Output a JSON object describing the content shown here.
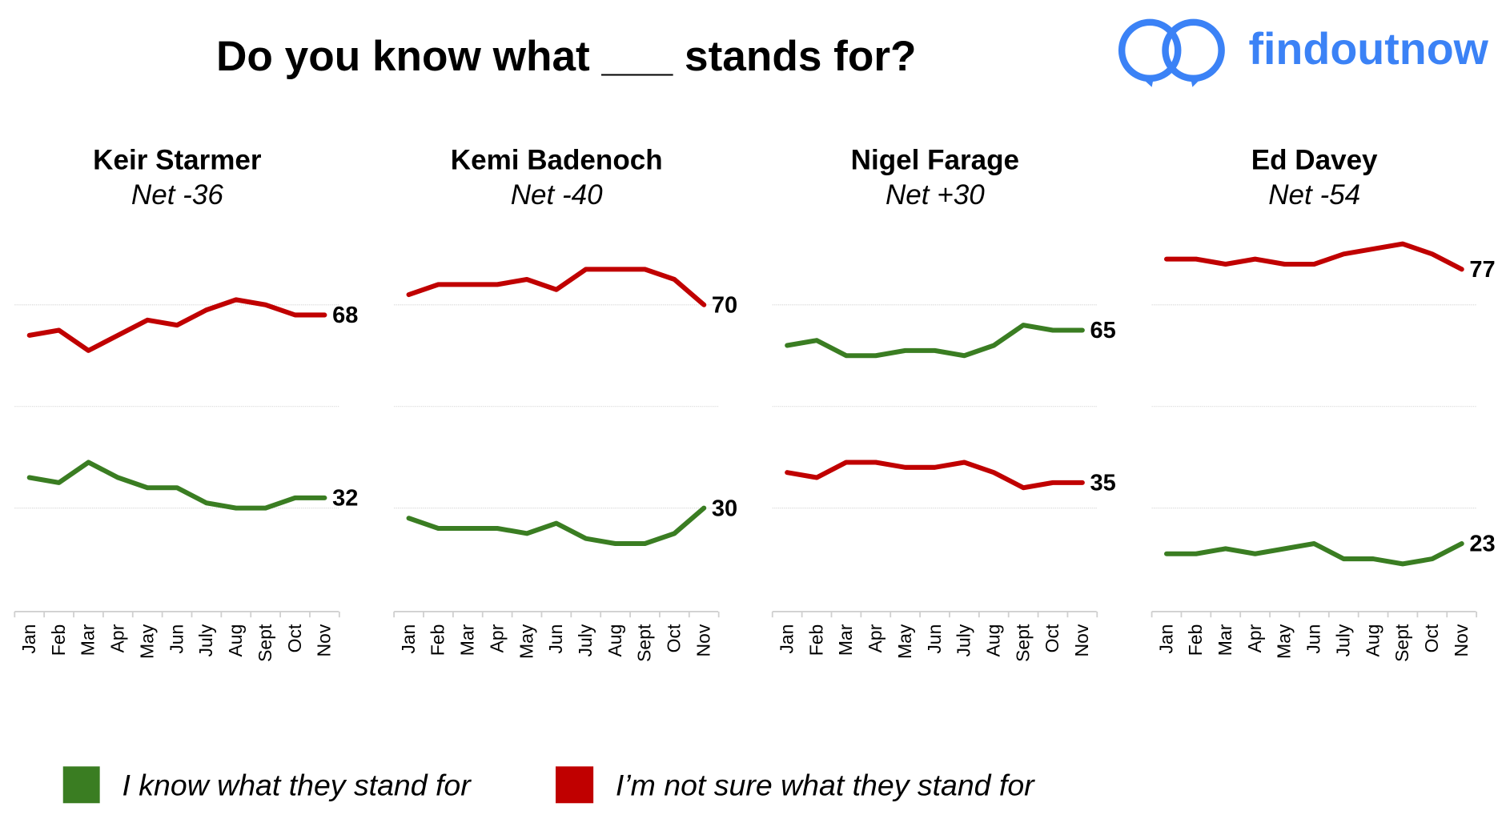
{
  "title": "Do you know what ___ stands for?",
  "brand": {
    "name": "findoutnow",
    "color": "#3b82f6"
  },
  "legend": [
    {
      "label": "I know what they stand for",
      "color": "#3a7d22"
    },
    {
      "label": "I’m not sure what they stand for",
      "color": "#c00000"
    }
  ],
  "chart_data": [
    {
      "type": "line",
      "title": "Keir Starmer",
      "subtitle": "Net -36",
      "categories": [
        "Jan",
        "Feb",
        "Mar",
        "Apr",
        "May",
        "Jun",
        "July",
        "Aug",
        "Sept",
        "Oct",
        "Nov"
      ],
      "ylim": [
        10,
        90
      ],
      "grid": true,
      "series": [
        {
          "name": "I know what they stand for",
          "color": "#3a7d22",
          "values": [
            36,
            35,
            39,
            36,
            34,
            34,
            31,
            30,
            30,
            32,
            32
          ],
          "end_label": "32"
        },
        {
          "name": "I’m not sure what they stand for",
          "color": "#c00000",
          "values": [
            64,
            65,
            61,
            64,
            67,
            66,
            69,
            71,
            70,
            68,
            68
          ],
          "end_label": "68"
        }
      ]
    },
    {
      "type": "line",
      "title": "Kemi Badenoch",
      "subtitle": "Net -40",
      "categories": [
        "Jan",
        "Feb",
        "Mar",
        "Apr",
        "May",
        "Jun",
        "July",
        "Aug",
        "Sept",
        "Oct",
        "Nov"
      ],
      "ylim": [
        10,
        90
      ],
      "grid": true,
      "series": [
        {
          "name": "I know what they stand for",
          "color": "#3a7d22",
          "values": [
            28,
            26,
            26,
            26,
            25,
            27,
            24,
            23,
            23,
            25,
            30
          ],
          "end_label": "30"
        },
        {
          "name": "I’m not sure what they stand for",
          "color": "#c00000",
          "values": [
            72,
            74,
            74,
            74,
            75,
            73,
            77,
            77,
            77,
            75,
            70
          ],
          "end_label": "70"
        }
      ]
    },
    {
      "type": "line",
      "title": "Nigel Farage",
      "subtitle": "Net +30",
      "categories": [
        "Jan",
        "Feb",
        "Mar",
        "Apr",
        "May",
        "Jun",
        "July",
        "Aug",
        "Sept",
        "Oct",
        "Nov"
      ],
      "ylim": [
        10,
        90
      ],
      "grid": true,
      "series": [
        {
          "name": "I know what they stand for",
          "color": "#3a7d22",
          "values": [
            62,
            63,
            60,
            60,
            61,
            61,
            60,
            62,
            66,
            65,
            65
          ],
          "end_label": "65"
        },
        {
          "name": "I’m not sure what they stand for",
          "color": "#c00000",
          "values": [
            37,
            36,
            39,
            39,
            38,
            38,
            39,
            37,
            34,
            35,
            35
          ],
          "end_label": "35"
        }
      ]
    },
    {
      "type": "line",
      "title": "Ed Davey",
      "subtitle": "Net -54",
      "categories": [
        "Jan",
        "Feb",
        "Mar",
        "Apr",
        "May",
        "Jun",
        "July",
        "Aug",
        "Sept",
        "Oct",
        "Nov"
      ],
      "ylim": [
        10,
        90
      ],
      "grid": true,
      "series": [
        {
          "name": "I know what they stand for",
          "color": "#3a7d22",
          "values": [
            21,
            21,
            22,
            21,
            22,
            23,
            20,
            20,
            19,
            20,
            23
          ],
          "end_label": "23"
        },
        {
          "name": "I’m not sure what they stand for",
          "color": "#c00000",
          "values": [
            79,
            79,
            78,
            79,
            78,
            78,
            80,
            81,
            82,
            80,
            77
          ],
          "end_label": "77"
        }
      ]
    }
  ]
}
